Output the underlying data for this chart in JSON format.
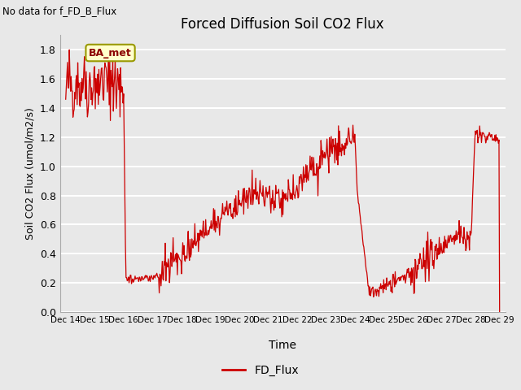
{
  "title": "Forced Diffusion Soil CO2 Flux",
  "xlabel": "Time",
  "ylabel": "Soil CO2 Flux (umol/m2/s)",
  "no_data_text": "No data for f_FD_B_Flux",
  "legend_label": "FD_Flux",
  "ba_met_label": "BA_met",
  "line_color": "#cc0000",
  "legend_line_color": "#cc0000",
  "ba_met_bg": "#ffffcc",
  "ba_met_border": "#999900",
  "background_color": "#e8e8e8",
  "ylim": [
    0.0,
    1.9
  ],
  "yticks": [
    0.0,
    0.2,
    0.4,
    0.6,
    0.8,
    1.0,
    1.2,
    1.4,
    1.6,
    1.8
  ],
  "xstart": 13.8,
  "xend": 29.2,
  "xtick_positions": [
    14,
    15,
    16,
    17,
    18,
    19,
    20,
    21,
    22,
    23,
    24,
    25,
    26,
    27,
    28,
    29
  ],
  "xtick_labels": [
    "Dec 14",
    "Dec 15",
    "Dec 16",
    "Dec 17",
    "Dec 18",
    "Dec 19",
    "Dec 20",
    "Dec 21",
    "Dec 22",
    "Dec 23",
    "Dec 24",
    "Dec 25",
    "Dec 26",
    "Dec 27",
    "Dec 28",
    "Dec 29"
  ]
}
